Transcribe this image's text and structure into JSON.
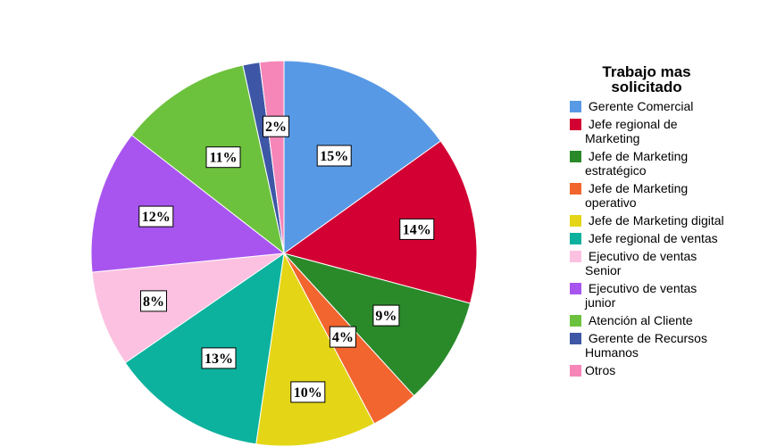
{
  "chart_data": {
    "type": "pie",
    "legend_title": "Trabajo mas solicitado",
    "legend_placement": "right",
    "slices": [
      {
        "name": "Gerente Comercial",
        "value": 15,
        "label": "15%",
        "color": "#5899e6"
      },
      {
        "name": "Jefe regional de Marketing",
        "value": 14,
        "label": "14%",
        "color": "#d30033"
      },
      {
        "name": "Jefe de Marketing estratégico",
        "value": 9,
        "label": "9%",
        "color": "#2a8a2a"
      },
      {
        "name": "Jefe de Marketing operativo",
        "value": 4,
        "label": "4%",
        "color": "#f2652e"
      },
      {
        "name": "Jefe de Marketing digital",
        "value": 10,
        "label": "10%",
        "color": "#e4d616"
      },
      {
        "name": "Jefe regional de ventas",
        "value": 13,
        "label": "13%",
        "color": "#0cb29d"
      },
      {
        "name": "Ejecutivo de ventas Senior",
        "value": 8,
        "label": "8%",
        "color": "#fcc1e1"
      },
      {
        "name": "Ejecutivo de ventas junior",
        "value": 12,
        "label": "12%",
        "color": "#a855ef"
      },
      {
        "name": "Atención al Cliente",
        "value": 11,
        "label": "11%",
        "color": "#6dc23d"
      },
      {
        "name": "Gerente de Recursos Humanos",
        "value": 1.4,
        "label": "",
        "color": "#3d57a6"
      },
      {
        "name": "Otros",
        "value": 2,
        "label": "2%",
        "color": "#f686b8"
      }
    ]
  }
}
